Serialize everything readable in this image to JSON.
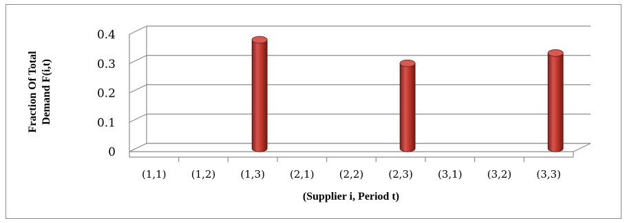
{
  "chart_data": {
    "type": "bar",
    "style": "3d-cylinder",
    "categories": [
      "(1,1)",
      "(1,2)",
      "(1,3)",
      "(2,1)",
      "(2,2)",
      "(2,3)",
      "(3,1)",
      "(3,2)",
      "(3,3)"
    ],
    "values": [
      0,
      0,
      0.37,
      0,
      0,
      0.29,
      0,
      0,
      0.325
    ],
    "title": "",
    "xlabel": "(Supplier i, Period t)",
    "ylabel_lines": [
      "Fraction Of Total",
      "Demand F(i,t)"
    ],
    "ylim": [
      0,
      0.4
    ],
    "yticks": [
      "0",
      "0.1",
      "0.2",
      "0.3",
      "0.4"
    ],
    "grid": true,
    "legend": "none",
    "bar_color": "#c0392b"
  }
}
